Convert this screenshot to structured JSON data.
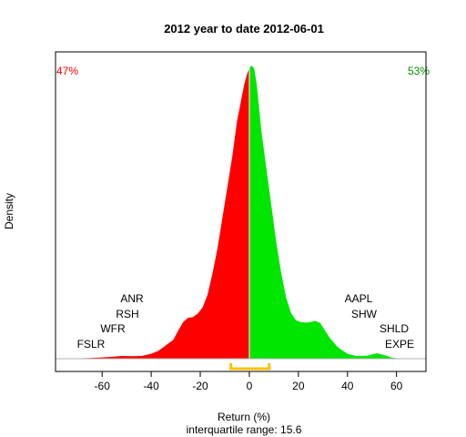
{
  "chart_data": {
    "type": "area",
    "title": "2012  year to date 2012-06-01",
    "xlabel": "Return (%)",
    "ylabel": "Density",
    "subtitle": "interquartile range: 15.6",
    "xlim": [
      -79,
      72
    ],
    "x_ticks": [
      -60,
      -40,
      -20,
      0,
      20,
      40,
      60
    ],
    "x_tick_labels": [
      "-60",
      "-40",
      "-20",
      "0",
      "20",
      "40",
      "60"
    ],
    "split_at": 0,
    "density": {
      "x": [
        -72,
        -65,
        -58,
        -52,
        -48,
        -44,
        -40,
        -37,
        -34,
        -31,
        -29,
        -27,
        -25,
        -23,
        -21,
        -19,
        -17,
        -15,
        -13,
        -11,
        -9,
        -7,
        -5,
        -4,
        -3,
        -2,
        -1,
        0,
        1,
        2,
        3,
        4,
        5,
        7,
        9,
        11,
        13,
        15,
        17,
        19,
        21,
        23,
        25,
        27,
        29,
        31,
        33,
        36,
        40,
        44,
        48,
        52,
        55,
        58,
        61
      ],
      "density": [
        0.0003,
        0.0012,
        0.0025,
        0.0045,
        0.004,
        0.0045,
        0.008,
        0.013,
        0.022,
        0.031,
        0.046,
        0.06,
        0.067,
        0.068,
        0.074,
        0.084,
        0.105,
        0.14,
        0.18,
        0.23,
        0.28,
        0.33,
        0.39,
        0.41,
        0.43,
        0.45,
        0.465,
        0.476,
        0.48,
        0.475,
        0.45,
        0.41,
        0.37,
        0.31,
        0.25,
        0.19,
        0.14,
        0.1,
        0.075,
        0.063,
        0.06,
        0.059,
        0.06,
        0.062,
        0.058,
        0.045,
        0.033,
        0.019,
        0.008,
        0.004,
        0.005,
        0.009,
        0.006,
        0.002,
        0.0003
      ]
    },
    "ylim": [
      0,
      0.49
    ],
    "left_share": "47%",
    "right_share": "53%",
    "colors": {
      "left": "#ff0000",
      "right": "#00e600",
      "bracket": "#ffc000",
      "divider": "#ffffff"
    },
    "interquartile_range": {
      "from": -7.5,
      "to": 8.1
    },
    "left_tickers": [
      "ANR",
      "RSH",
      "WFR",
      "FSLR"
    ],
    "right_tickers": [
      "AAPL",
      "SHW",
      "SHLD",
      "EXPE"
    ],
    "grid": false,
    "legend": "none"
  }
}
